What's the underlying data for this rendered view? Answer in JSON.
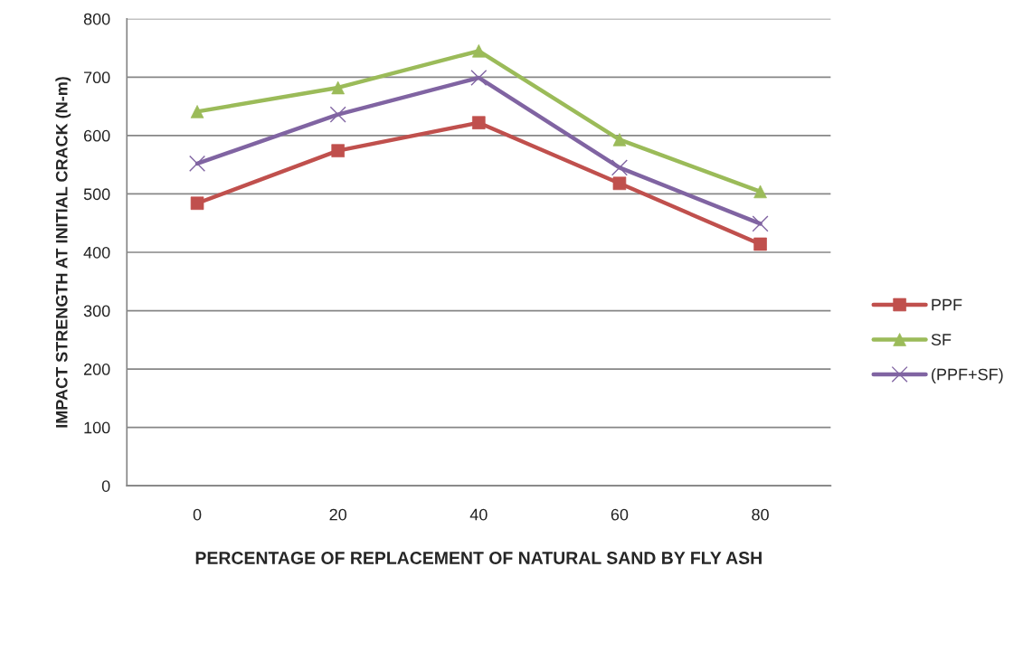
{
  "chart_data": {
    "type": "line",
    "xlabel": "PERCENTAGE OF REPLACEMENT OF NATURAL SAND BY FLY ASH",
    "ylabel": "IMPACT STRENGTH AT INITIAL CRACK (N-m)",
    "categories": [
      "0",
      "20",
      "40",
      "60",
      "80"
    ],
    "series": [
      {
        "name": "PPF",
        "color": "#c0504d",
        "marker": "square",
        "values": [
          484,
          574,
          622,
          518,
          414
        ]
      },
      {
        "name": "SF",
        "color": "#9bbb59",
        "marker": "triangle",
        "values": [
          641,
          682,
          745,
          593,
          504
        ]
      },
      {
        "name": "(PPF+SF)",
        "color": "#8064a2",
        "marker": "cross",
        "values": [
          552,
          636,
          699,
          545,
          449
        ]
      }
    ],
    "ylim": [
      0,
      800
    ],
    "yticks": [
      0,
      100,
      200,
      300,
      400,
      500,
      600,
      700,
      800
    ],
    "grid": "y",
    "legend": "right",
    "line_style": "solid"
  }
}
